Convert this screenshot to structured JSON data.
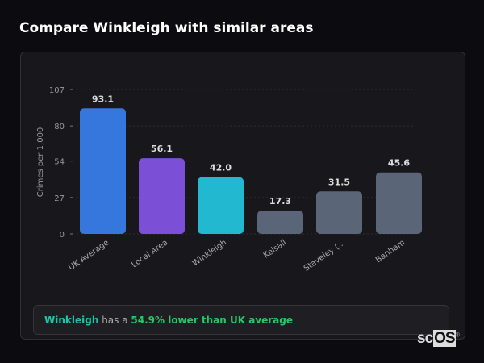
{
  "title": "Compare Winkleigh with similar areas",
  "chart_data": {
    "type": "bar",
    "categories": [
      "UK Average",
      "Local Area",
      "Winkleigh",
      "Kelsall",
      "Staveley (...",
      "Banham"
    ],
    "values": [
      93.1,
      56.1,
      42.0,
      17.3,
      31.5,
      45.6
    ],
    "colors": [
      "#3577dc",
      "#7b4fd6",
      "#21b8d0",
      "#5a6577",
      "#5a6577",
      "#5a6577"
    ],
    "ylabel": "Crimes per 1,000",
    "yticks": [
      0,
      27,
      54,
      80,
      107
    ],
    "ylim": [
      0,
      107
    ],
    "grid": true
  },
  "callout": {
    "area": "Winkleigh",
    "middle": " has a ",
    "comparison": "54.9% lower than UK average"
  },
  "logo": {
    "text1": "sc",
    "text2": "OS",
    "mark": "®"
  }
}
